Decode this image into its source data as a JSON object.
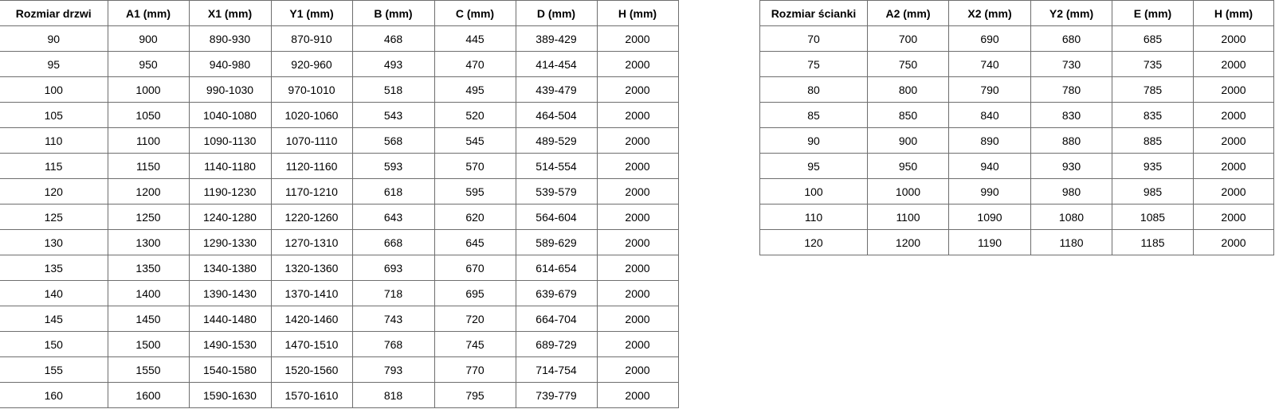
{
  "doors_table": {
    "headers": [
      "Rozmiar drzwi",
      "A1 (mm)",
      "X1 (mm)",
      "Y1 (mm)",
      "B (mm)",
      "C (mm)",
      "D (mm)",
      "H (mm)"
    ],
    "rows": [
      [
        "90",
        "900",
        "890-930",
        "870-910",
        "468",
        "445",
        "389-429",
        "2000"
      ],
      [
        "95",
        "950",
        "940-980",
        "920-960",
        "493",
        "470",
        "414-454",
        "2000"
      ],
      [
        "100",
        "1000",
        "990-1030",
        "970-1010",
        "518",
        "495",
        "439-479",
        "2000"
      ],
      [
        "105",
        "1050",
        "1040-1080",
        "1020-1060",
        "543",
        "520",
        "464-504",
        "2000"
      ],
      [
        "110",
        "1100",
        "1090-1130",
        "1070-1110",
        "568",
        "545",
        "489-529",
        "2000"
      ],
      [
        "115",
        "1150",
        "1140-1180",
        "1120-1160",
        "593",
        "570",
        "514-554",
        "2000"
      ],
      [
        "120",
        "1200",
        "1190-1230",
        "1170-1210",
        "618",
        "595",
        "539-579",
        "2000"
      ],
      [
        "125",
        "1250",
        "1240-1280",
        "1220-1260",
        "643",
        "620",
        "564-604",
        "2000"
      ],
      [
        "130",
        "1300",
        "1290-1330",
        "1270-1310",
        "668",
        "645",
        "589-629",
        "2000"
      ],
      [
        "135",
        "1350",
        "1340-1380",
        "1320-1360",
        "693",
        "670",
        "614-654",
        "2000"
      ],
      [
        "140",
        "1400",
        "1390-1430",
        "1370-1410",
        "718",
        "695",
        "639-679",
        "2000"
      ],
      [
        "145",
        "1450",
        "1440-1480",
        "1420-1460",
        "743",
        "720",
        "664-704",
        "2000"
      ],
      [
        "150",
        "1500",
        "1490-1530",
        "1470-1510",
        "768",
        "745",
        "689-729",
        "2000"
      ],
      [
        "155",
        "1550",
        "1540-1580",
        "1520-1560",
        "793",
        "770",
        "714-754",
        "2000"
      ],
      [
        "160",
        "1600",
        "1590-1630",
        "1570-1610",
        "818",
        "795",
        "739-779",
        "2000"
      ]
    ]
  },
  "wall_table": {
    "headers": [
      "Rozmiar ścianki",
      "A2 (mm)",
      "X2 (mm)",
      "Y2 (mm)",
      "E (mm)",
      "H (mm)"
    ],
    "rows": [
      [
        "70",
        "700",
        "690",
        "680",
        "685",
        "2000"
      ],
      [
        "75",
        "750",
        "740",
        "730",
        "735",
        "2000"
      ],
      [
        "80",
        "800",
        "790",
        "780",
        "785",
        "2000"
      ],
      [
        "85",
        "850",
        "840",
        "830",
        "835",
        "2000"
      ],
      [
        "90",
        "900",
        "890",
        "880",
        "885",
        "2000"
      ],
      [
        "95",
        "950",
        "940",
        "930",
        "935",
        "2000"
      ],
      [
        "100",
        "1000",
        "990",
        "980",
        "985",
        "2000"
      ],
      [
        "110",
        "1100",
        "1090",
        "1080",
        "1085",
        "2000"
      ],
      [
        "120",
        "1200",
        "1190",
        "1180",
        "1185",
        "2000"
      ]
    ]
  }
}
